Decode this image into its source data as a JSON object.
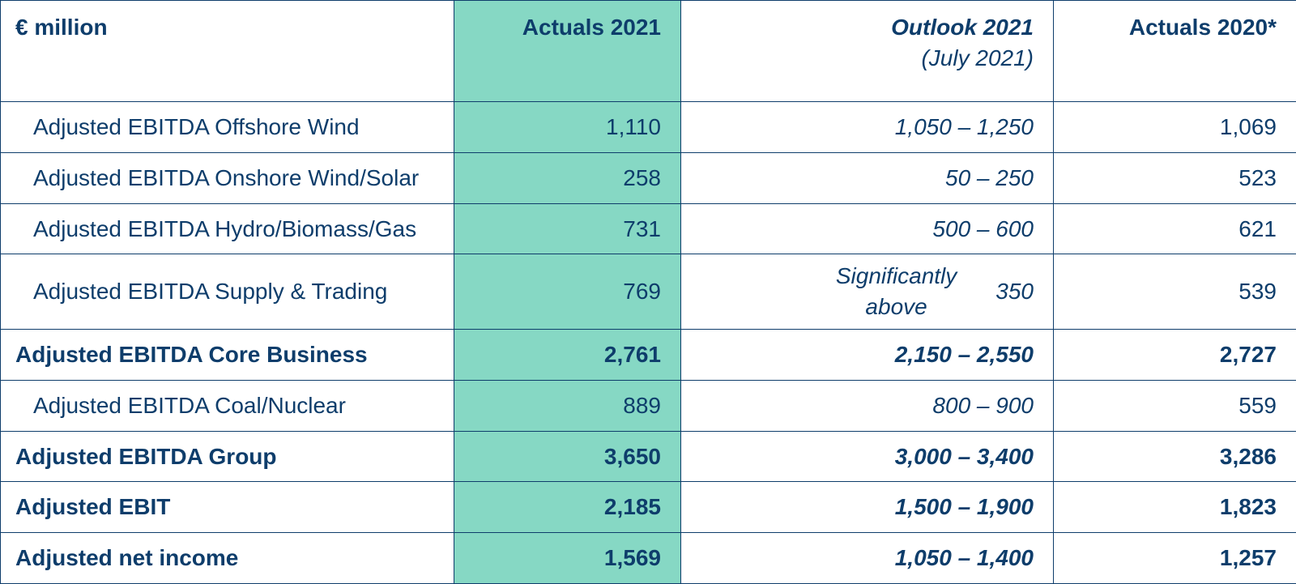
{
  "table": {
    "header": {
      "metric_label": "€ million",
      "actuals_2021": "Actuals 2021",
      "outlook_2021": "Outlook 2021",
      "outlook_sub": "(July 2021)",
      "actuals_2020": "Actuals 2020*"
    },
    "rows": [
      {
        "label": "Adjusted EBITDA Offshore Wind",
        "actuals_2021": "1,110",
        "outlook": "1,050 – 1,250",
        "actuals_2020": "1,069",
        "bold": false
      },
      {
        "label": "Adjusted EBITDA Onshore Wind/Solar",
        "actuals_2021": "258",
        "outlook": "50 – 250",
        "actuals_2020": "523",
        "bold": false
      },
      {
        "label": "Adjusted EBITDA Hydro/Biomass/Gas",
        "actuals_2021": "731",
        "outlook": "500 – 600",
        "actuals_2020": "621",
        "bold": false
      },
      {
        "label": "Adjusted EBITDA Supply & Trading",
        "actuals_2021": "769",
        "outlook_special": {
          "text": "Significantly\nabove",
          "value": "350"
        },
        "actuals_2020": "539",
        "bold": false
      },
      {
        "label": "Adjusted EBITDA Core Business",
        "actuals_2021": "2,761",
        "outlook": "2,150 – 2,550",
        "actuals_2020": "2,727",
        "bold": true
      },
      {
        "label": "Adjusted EBITDA Coal/Nuclear",
        "actuals_2021": "889",
        "outlook": "800 – 900",
        "actuals_2020": "559",
        "bold": false
      },
      {
        "label": "Adjusted EBITDA Group",
        "actuals_2021": "3,650",
        "outlook": "3,000 – 3,400",
        "actuals_2020": "3,286",
        "bold": true
      },
      {
        "label": "Adjusted EBIT",
        "actuals_2021": "2,185",
        "outlook": "1,500 – 1,900",
        "actuals_2020": "1,823",
        "bold": true
      },
      {
        "label": "Adjusted net income",
        "actuals_2021": "1,569",
        "outlook": "1,050 – 1,400",
        "actuals_2020": "1,257",
        "bold": true
      }
    ],
    "colors": {
      "border": "#0e3d6b",
      "text": "#0e3d6b",
      "highlight_bg": "#86d8c4",
      "page_bg": "#ffffff"
    },
    "typography": {
      "cell_fontsize_pt": 21,
      "header_weight": 700,
      "body_weight": 400,
      "bold_row_weight": 700,
      "outlook_style": "italic"
    }
  }
}
